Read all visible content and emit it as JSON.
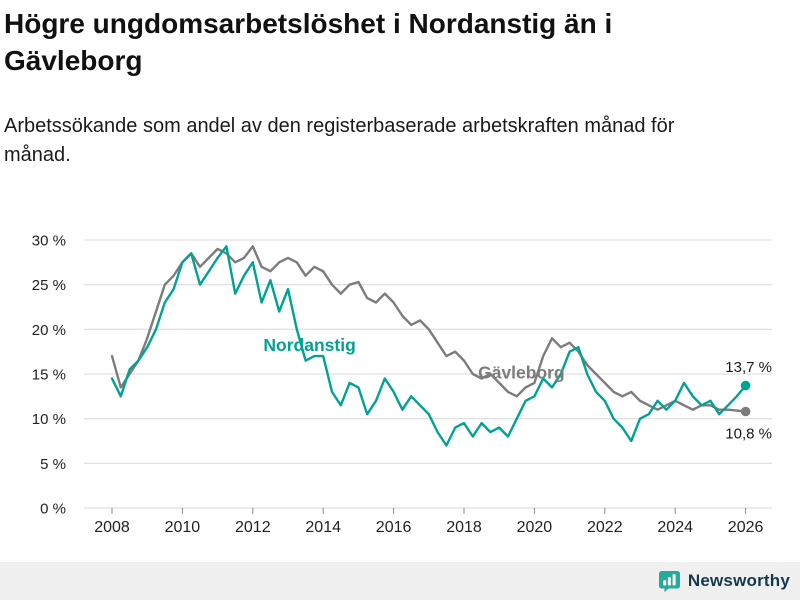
{
  "header": {
    "title": "Högre ungdomsarbetslöshet i Nordanstig än i Gävleborg",
    "subtitle": "Arbetssökande som andel av den registerbaserade arbetskraften månad för månad."
  },
  "footer": {
    "brand": "Newsworthy"
  },
  "colors": {
    "nordanstig": "#00a393",
    "gavleborg": "#7c7c7c",
    "grid": "#d8d8d8",
    "tick": "#888888",
    "tick_label": "#222222",
    "annotation_text": "#1a1a1a",
    "footer_bg": "#f0f0f0",
    "brand_icon": "#25ab9c",
    "brand_text": "#14384c"
  },
  "chart_data": {
    "type": "line",
    "title": "Högre ungdomsarbetslöshet i Nordanstig än i Gävleborg",
    "xlabel": "",
    "ylabel": "",
    "grid": true,
    "legend_position": "inline-labels",
    "xlim": [
      2007.6,
      2026.8
    ],
    "ylim": [
      0,
      30
    ],
    "x_ticks": [
      2008,
      2010,
      2012,
      2014,
      2016,
      2018,
      2020,
      2022,
      2024,
      2026
    ],
    "x_tick_labels": [
      "2008",
      "2010",
      "2012",
      "2014",
      "2016",
      "2018",
      "2020",
      "2022",
      "2024",
      "2026"
    ],
    "y_ticks": [
      0,
      5,
      10,
      15,
      20,
      25,
      30
    ],
    "y_tick_labels": [
      "0 %",
      "5 %",
      "10 %",
      "15 %",
      "20 %",
      "25 %",
      "30 %"
    ],
    "x": [
      2008,
      2008.25,
      2008.5,
      2008.75,
      2009,
      2009.25,
      2009.5,
      2009.75,
      2010,
      2010.25,
      2010.5,
      2010.75,
      2011,
      2011.25,
      2011.5,
      2011.75,
      2012,
      2012.25,
      2012.5,
      2012.75,
      2013,
      2013.25,
      2013.5,
      2013.75,
      2014,
      2014.25,
      2014.5,
      2014.75,
      2015,
      2015.25,
      2015.5,
      2015.75,
      2016,
      2016.25,
      2016.5,
      2016.75,
      2017,
      2017.25,
      2017.5,
      2017.75,
      2018,
      2018.25,
      2018.5,
      2018.75,
      2019,
      2019.25,
      2019.5,
      2019.75,
      2020,
      2020.25,
      2020.5,
      2020.75,
      2021,
      2021.25,
      2021.5,
      2021.75,
      2022,
      2022.25,
      2022.5,
      2022.75,
      2023,
      2023.25,
      2023.5,
      2023.75,
      2024,
      2024.25,
      2024.5,
      2024.75,
      2025,
      2025.25,
      2025.5,
      2025.75,
      2026
    ],
    "series": [
      {
        "name": "Nordanstig",
        "color": "#00a393",
        "end_value_label": "13,7 %",
        "values": [
          14.5,
          12.5,
          15.5,
          16.5,
          18,
          20,
          23,
          24.5,
          27.5,
          28.5,
          25,
          26.5,
          28,
          29.3,
          24,
          26,
          27.5,
          23,
          25.5,
          22,
          24.5,
          20,
          16.5,
          17,
          17,
          13,
          11.5,
          14,
          13.5,
          10.5,
          12,
          14.5,
          13,
          11,
          12.5,
          11.5,
          10.5,
          8.5,
          7,
          9,
          9.5,
          8,
          9.5,
          8.5,
          9,
          8,
          10,
          12,
          12.5,
          14.5,
          13.5,
          15,
          17.5,
          18,
          15,
          13,
          12,
          10,
          9,
          7.5,
          10,
          10.5,
          12,
          11,
          12,
          14,
          12.5,
          11.5,
          12,
          10.5,
          11.5,
          12.5,
          13.7
        ]
      },
      {
        "name": "Gävleborg",
        "color": "#7c7c7c",
        "end_value_label": "10,8 %",
        "values": [
          17,
          13.5,
          15,
          16.5,
          19,
          22,
          25,
          26,
          27.5,
          28.5,
          27,
          28,
          29,
          28.5,
          27.5,
          28,
          29.3,
          27,
          26.5,
          27.5,
          28,
          27.5,
          26,
          27,
          26.5,
          25,
          24,
          25,
          25.3,
          23.5,
          23,
          24,
          23,
          21.5,
          20.5,
          21,
          20,
          18.5,
          17,
          17.5,
          16.5,
          15,
          14.5,
          15,
          14,
          13,
          12.5,
          13.5,
          14,
          17,
          19,
          18,
          18.5,
          17.5,
          16,
          15,
          14,
          13,
          12.5,
          13,
          12,
          11.5,
          11,
          11.5,
          12,
          11.5,
          11,
          11.5,
          11.5,
          11,
          11,
          10.9,
          10.8
        ]
      }
    ],
    "annotations": {
      "series_labels": [
        {
          "text": "Nordanstig",
          "x": 2012.3,
          "y": 17.6,
          "color": "#00a393"
        },
        {
          "text": "Gävleborg",
          "x": 2018.4,
          "y": 14.5,
          "color": "#7c7c7c"
        }
      ],
      "end_labels": [
        {
          "text": "13,7 %",
          "x": 2026.75,
          "y": 15.2
        },
        {
          "text": "10,8 %",
          "x": 2026.75,
          "y": 7.8
        }
      ]
    }
  }
}
